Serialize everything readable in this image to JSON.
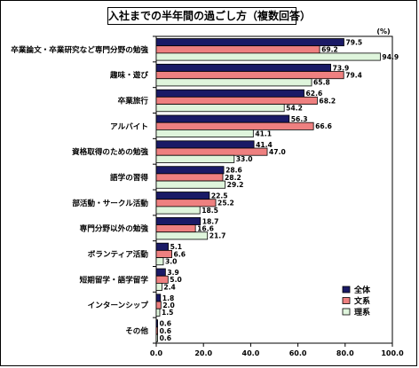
{
  "chart_data": {
    "type": "bar",
    "orientation": "horizontal",
    "title": "入社までの半年間の過ごし方（複数回答）",
    "unit": "(%)",
    "categories": [
      "卒業論文・卒業研究など専門分野の勉強",
      "趣味・遊び",
      "卒業旅行",
      "アルバイト",
      "資格取得のための勉強",
      "語学の習得",
      "部活動・サークル活動",
      "専門分野以外の勉強",
      "ボランティア活動",
      "短期留学・語学留学",
      "インターンシップ",
      "その他"
    ],
    "series": [
      {
        "name": "全体",
        "color": "#1a1a66",
        "values": [
          79.5,
          73.9,
          62.6,
          56.3,
          41.4,
          28.6,
          22.5,
          18.7,
          5.1,
          3.9,
          1.8,
          0.6
        ]
      },
      {
        "name": "文系",
        "color": "#ee8080",
        "values": [
          69.2,
          79.4,
          68.2,
          66.6,
          47.0,
          28.2,
          25.2,
          16.6,
          6.6,
          5.0,
          2.0,
          0.6
        ]
      },
      {
        "name": "理系",
        "color": "#dff5dc",
        "values": [
          94.9,
          65.8,
          54.2,
          41.1,
          33.0,
          29.2,
          18.5,
          21.7,
          3.0,
          2.4,
          1.5,
          0.6
        ]
      }
    ],
    "xlim": [
      0,
      100
    ],
    "ticks": [
      "0.0",
      "20.0",
      "40.0",
      "60.0",
      "80.0",
      "100.0"
    ],
    "grid": false,
    "legend_position": "bottom-right"
  }
}
